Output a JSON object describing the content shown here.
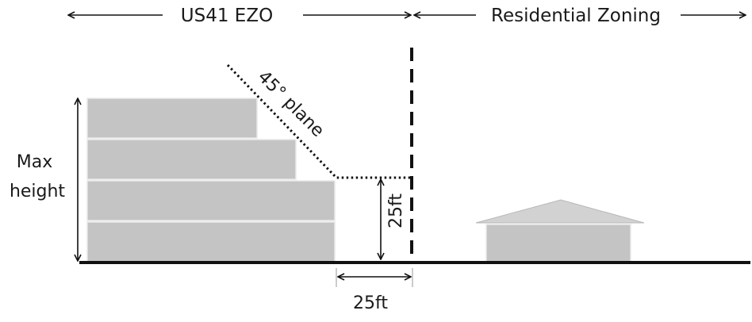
{
  "zones": {
    "left_label": "US41 EZO",
    "right_label": "Residential Zoning"
  },
  "labels": {
    "max_height": [
      "Max",
      "height"
    ],
    "plane": "45° plane",
    "vertical_setback": "25ft",
    "horizontal_setback": "25ft"
  },
  "colors": {
    "block_fill": "#c4c4c4",
    "block_stroke": "#e8e8e8",
    "roof_fill": "#d2d2d2",
    "ink": "#111111"
  }
}
